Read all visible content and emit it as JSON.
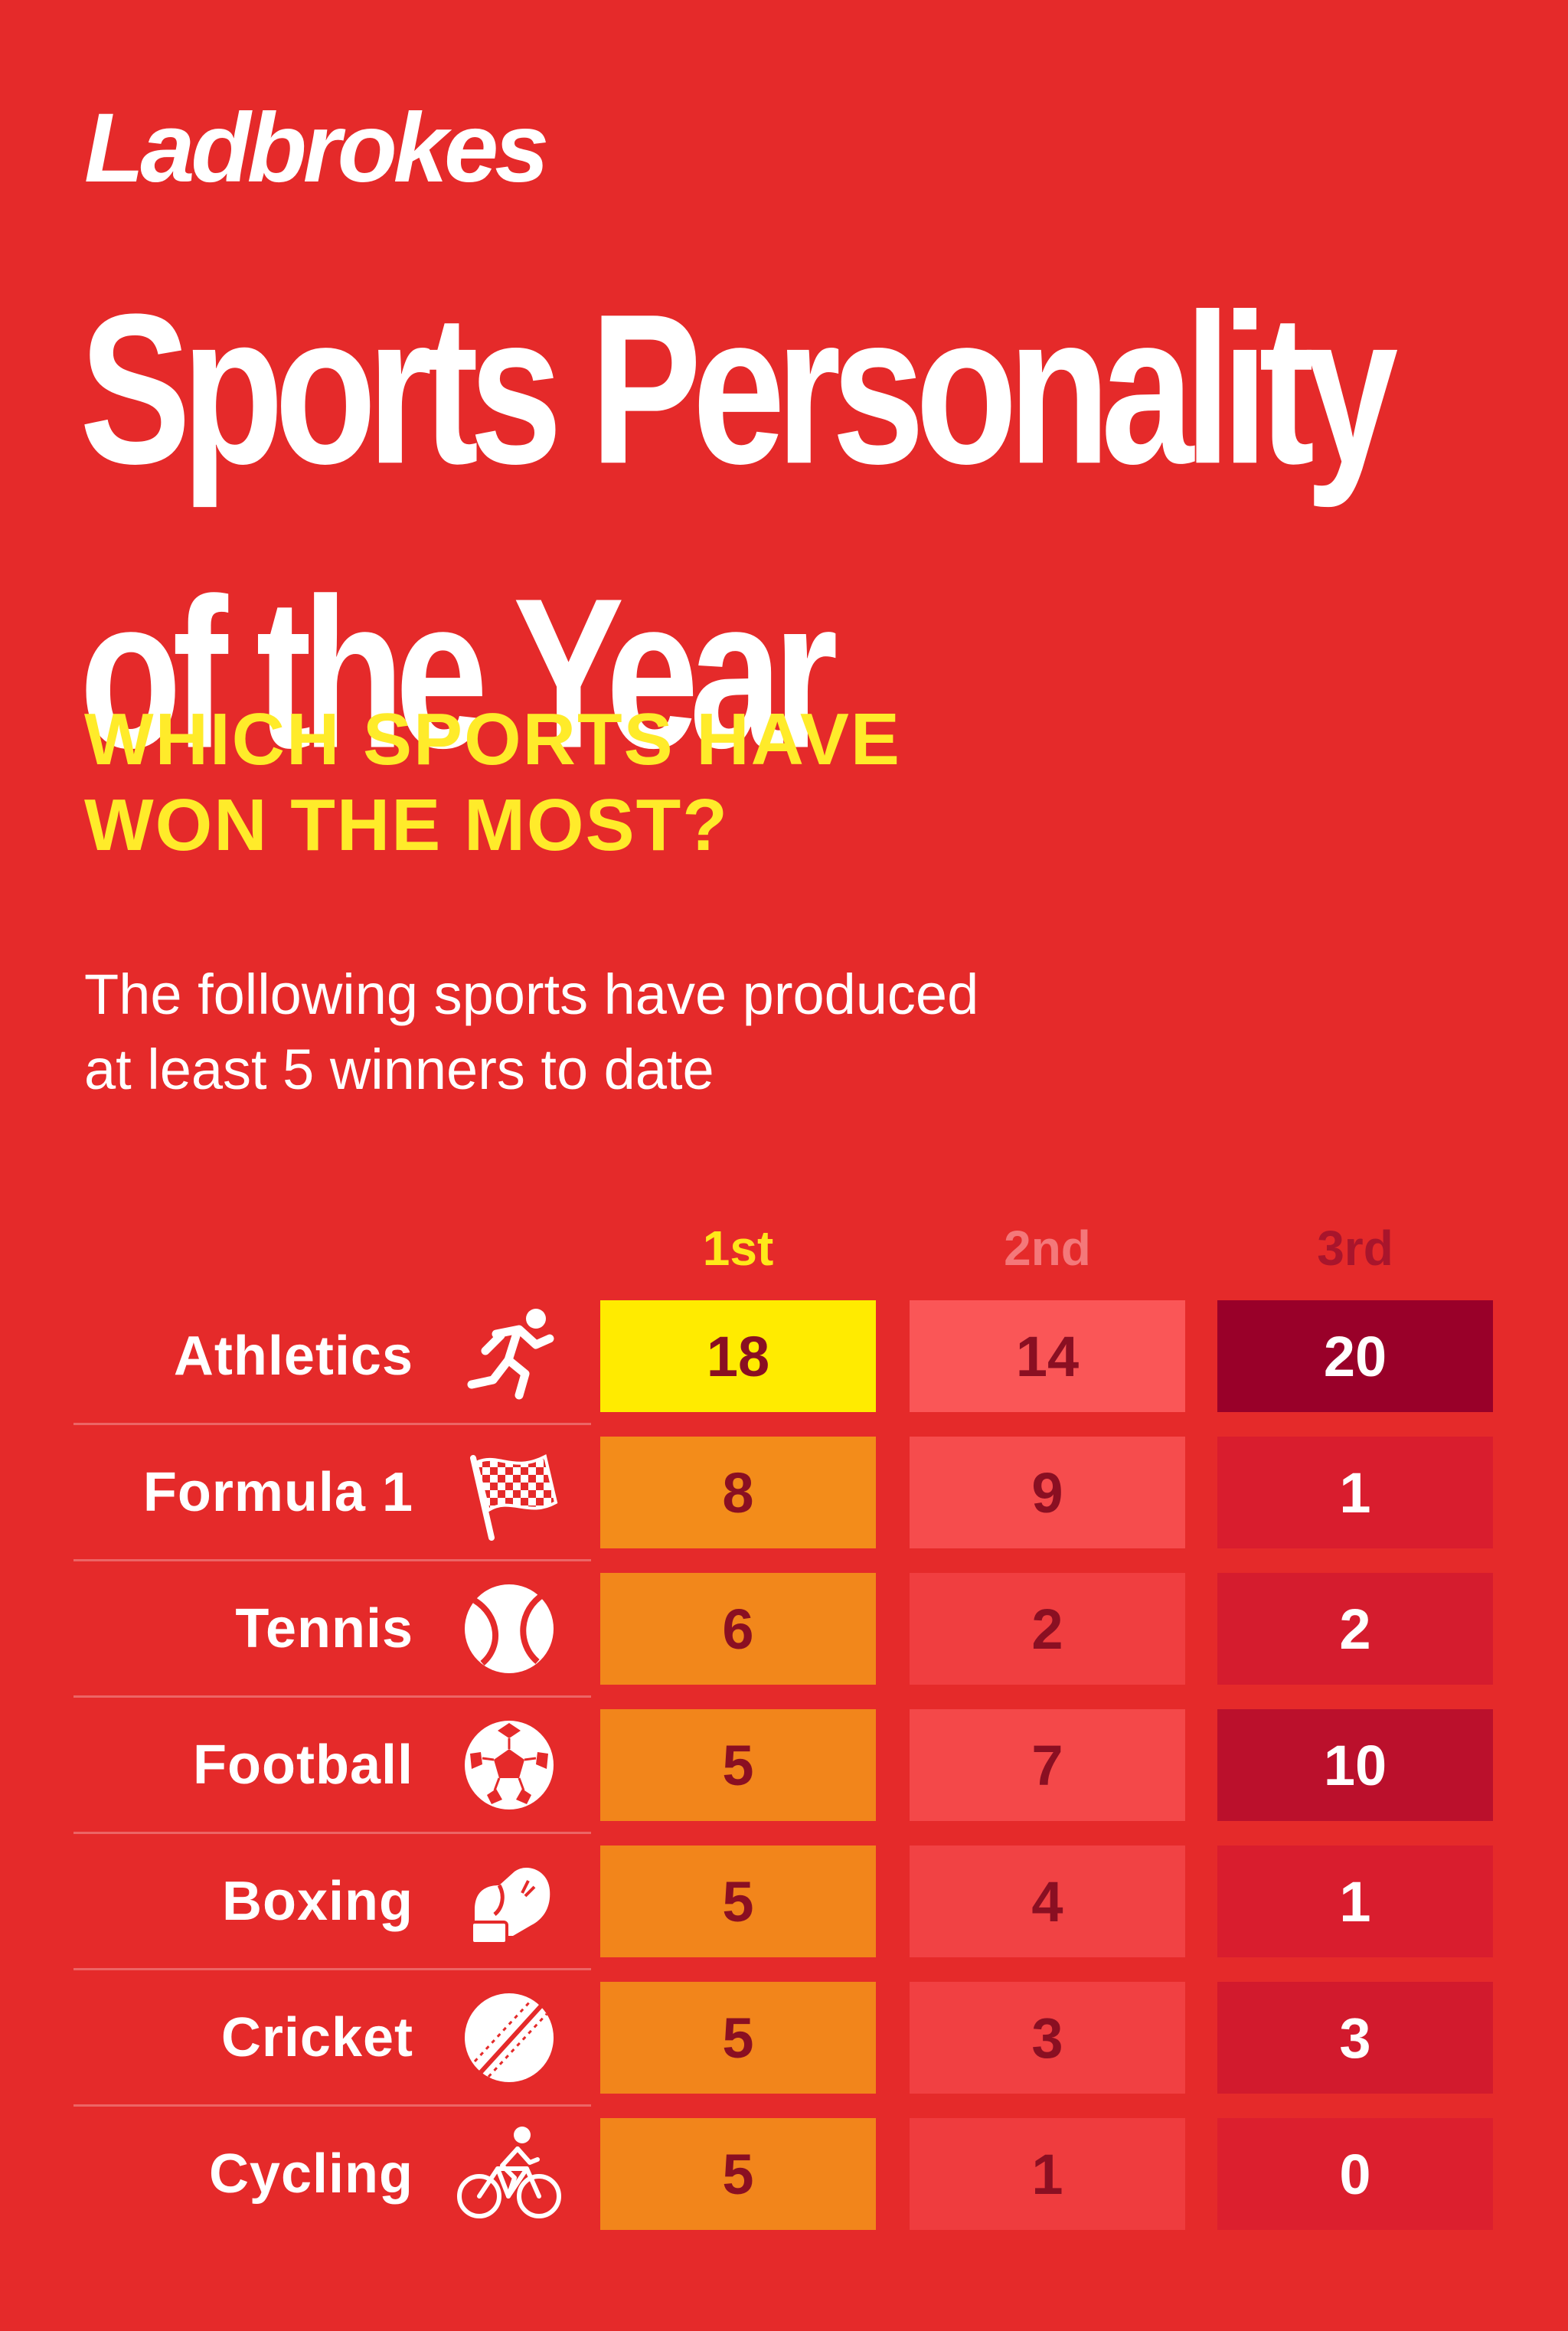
{
  "brand": "Ladbrokes",
  "title_lines": [
    "Sports Personality",
    "of the Year"
  ],
  "subtitle_lines": [
    "WHICH SPORTS HAVE",
    "WON THE MOST?"
  ],
  "description_lines": [
    "The following sports have produced",
    "at least 5 winners to date"
  ],
  "colors": {
    "background": "#E52A2A",
    "title": "#FFFFFF",
    "subtitle": "#FFEB2A",
    "header_1st": "#FFE81A",
    "header_2nd": "#F4787A",
    "header_3rd": "#A8152C"
  },
  "chart_data": {
    "type": "table",
    "columns": [
      "1st",
      "2nd",
      "3rd"
    ],
    "rows": [
      {
        "sport": "Athletics",
        "icon": "running-icon",
        "values": [
          18,
          14,
          20
        ]
      },
      {
        "sport": "Formula 1",
        "icon": "checkered-flag-icon",
        "values": [
          8,
          9,
          1
        ]
      },
      {
        "sport": "Tennis",
        "icon": "tennis-ball-icon",
        "values": [
          6,
          2,
          2
        ]
      },
      {
        "sport": "Football",
        "icon": "football-icon",
        "values": [
          5,
          7,
          10
        ]
      },
      {
        "sport": "Boxing",
        "icon": "boxing-glove-icon",
        "values": [
          5,
          4,
          1
        ]
      },
      {
        "sport": "Cricket",
        "icon": "cricket-ball-icon",
        "values": [
          5,
          3,
          3
        ]
      },
      {
        "sport": "Cycling",
        "icon": "cyclist-icon",
        "values": [
          5,
          1,
          0
        ]
      }
    ]
  }
}
